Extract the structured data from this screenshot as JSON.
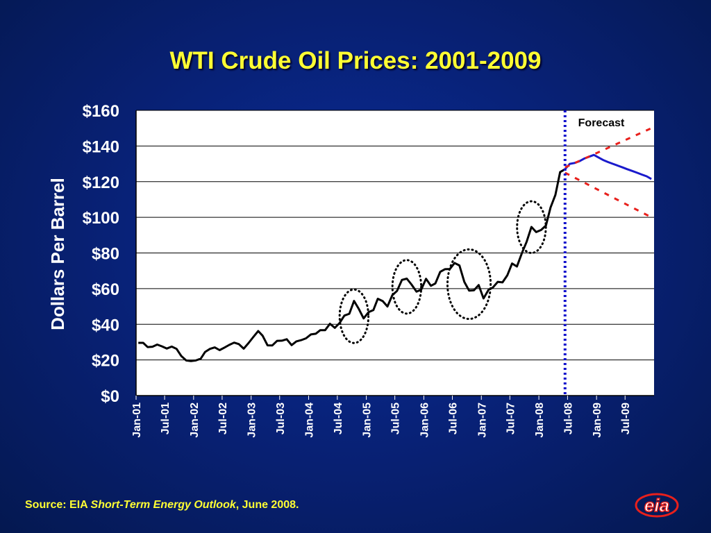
{
  "slide": {
    "title": "WTI Crude Oil Prices: 2001-2009",
    "source_prefix": "Source: EIA ",
    "source_italic": "Short-Term Energy Outlook",
    "source_suffix": ", June 2008.",
    "logo_text": "eia"
  },
  "colors": {
    "background": "#082072",
    "title": "#ffff33",
    "history_line": "#000000",
    "forecast_line": "#1a1acc",
    "band_line": "#e8201c",
    "divider": "#1111cc",
    "logo_red": "#e8201c"
  },
  "chart_data": {
    "type": "line",
    "title": "WTI Crude Oil Prices: 2001-2009",
    "xlabel": "",
    "ylabel": "Dollars Per Barrel",
    "x_tick_labels": [
      "Jan-01",
      "Jul-01",
      "Jan-02",
      "Jul-02",
      "Jan-03",
      "Jul-03",
      "Jan-04",
      "Jul-04",
      "Jan-05",
      "Jul-05",
      "Jan-06",
      "Jul-06",
      "Jan-07",
      "Jul-07",
      "Jan-08",
      "Jul-08",
      "Jan-09",
      "Jul-09"
    ],
    "y_tick_labels": [
      "$0",
      "$20",
      "$40",
      "$60",
      "$80",
      "$100",
      "$120",
      "$140",
      "$160"
    ],
    "ylim": [
      0,
      160
    ],
    "x_range": [
      "2001-01",
      "2009-12"
    ],
    "grid": true,
    "annotations": [
      {
        "text": "Forecast"
      }
    ],
    "series": [
      {
        "role": "historical",
        "x": [
          "2001-01",
          "2001-02",
          "2001-03",
          "2001-04",
          "2001-05",
          "2001-06",
          "2001-07",
          "2001-08",
          "2001-09",
          "2001-10",
          "2001-11",
          "2001-12",
          "2002-01",
          "2002-02",
          "2002-03",
          "2002-04",
          "2002-05",
          "2002-06",
          "2002-07",
          "2002-08",
          "2002-09",
          "2002-10",
          "2002-11",
          "2002-12",
          "2003-01",
          "2003-02",
          "2003-03",
          "2003-04",
          "2003-05",
          "2003-06",
          "2003-07",
          "2003-08",
          "2003-09",
          "2003-10",
          "2003-11",
          "2003-12",
          "2004-01",
          "2004-02",
          "2004-03",
          "2004-04",
          "2004-05",
          "2004-06",
          "2004-07",
          "2004-08",
          "2004-09",
          "2004-10",
          "2004-11",
          "2004-12",
          "2005-01",
          "2005-02",
          "2005-03",
          "2005-04",
          "2005-05",
          "2005-06",
          "2005-07",
          "2005-08",
          "2005-09",
          "2005-10",
          "2005-11",
          "2005-12",
          "2006-01",
          "2006-02",
          "2006-03",
          "2006-04",
          "2006-05",
          "2006-06",
          "2006-07",
          "2006-08",
          "2006-09",
          "2006-10",
          "2006-11",
          "2006-12",
          "2007-01",
          "2007-02",
          "2007-03",
          "2007-04",
          "2007-05",
          "2007-06",
          "2007-07",
          "2007-08",
          "2007-09",
          "2007-10",
          "2007-11",
          "2007-12",
          "2008-01",
          "2008-02",
          "2008-03",
          "2008-04",
          "2008-05",
          "2008-06"
        ],
        "values": [
          29.6,
          29.6,
          27.2,
          27.4,
          28.6,
          27.6,
          26.4,
          27.5,
          26.2,
          22.2,
          19.7,
          19.4,
          19.7,
          20.7,
          24.5,
          26.2,
          27.0,
          25.5,
          26.9,
          28.4,
          29.7,
          28.9,
          26.3,
          29.4,
          32.9,
          36.2,
          33.6,
          28.2,
          28.1,
          30.7,
          30.8,
          31.6,
          28.3,
          30.4,
          31.1,
          32.1,
          34.3,
          34.7,
          36.7,
          36.7,
          40.3,
          38.0,
          40.7,
          44.9,
          45.9,
          53.1,
          48.5,
          43.3,
          46.8,
          48.0,
          54.3,
          53.0,
          50.0,
          56.3,
          58.7,
          64.9,
          65.6,
          62.3,
          58.3,
          59.4,
          65.5,
          61.6,
          62.9,
          69.4,
          70.9,
          71.0,
          74.4,
          73.0,
          63.8,
          58.9,
          59.1,
          62.0,
          54.5,
          59.3,
          60.6,
          63.8,
          63.5,
          67.5,
          74.1,
          72.4,
          79.9,
          86.2,
          94.6,
          91.7,
          92.9,
          95.4,
          105.5,
          112.6,
          125.4,
          127.0
        ]
      },
      {
        "role": "forecast",
        "x": [
          "2008-06",
          "2008-07",
          "2008-08",
          "2008-09",
          "2008-10",
          "2008-11",
          "2008-12",
          "2009-01",
          "2009-02",
          "2009-03",
          "2009-04",
          "2009-05",
          "2009-06",
          "2009-07",
          "2009-08",
          "2009-09",
          "2009-10",
          "2009-11",
          "2009-12"
        ],
        "values": [
          127.0,
          130.0,
          130.5,
          131.5,
          133.0,
          134.0,
          135.0,
          133.5,
          132.0,
          131.0,
          130.0,
          129.0,
          128.0,
          127.0,
          126.0,
          125.0,
          124.0,
          123.0,
          121.5
        ]
      },
      {
        "role": "upper-band",
        "x": [
          "2008-06",
          "2009-12"
        ],
        "values": [
          128.0,
          150.0
        ]
      },
      {
        "role": "lower-band",
        "x": [
          "2008-06",
          "2009-12"
        ],
        "values": [
          125.0,
          100.0
        ]
      }
    ],
    "forecast_start": "2008-06-15",
    "highlight_ellipses": [
      {
        "center_x": "2004-10",
        "center_y": 44.5,
        "x_half_months": 3.0,
        "y_half": 15.0
      },
      {
        "center_x": "2005-09",
        "center_y": 61.0,
        "x_half_months": 3.0,
        "y_half": 15.0
      },
      {
        "center_x": "2006-10",
        "center_y": 62.5,
        "x_half_months": 4.5,
        "y_half": 19.5
      },
      {
        "center_x": "2007-11",
        "center_y": 94.5,
        "x_half_months": 3.0,
        "y_half": 14.5
      }
    ]
  }
}
